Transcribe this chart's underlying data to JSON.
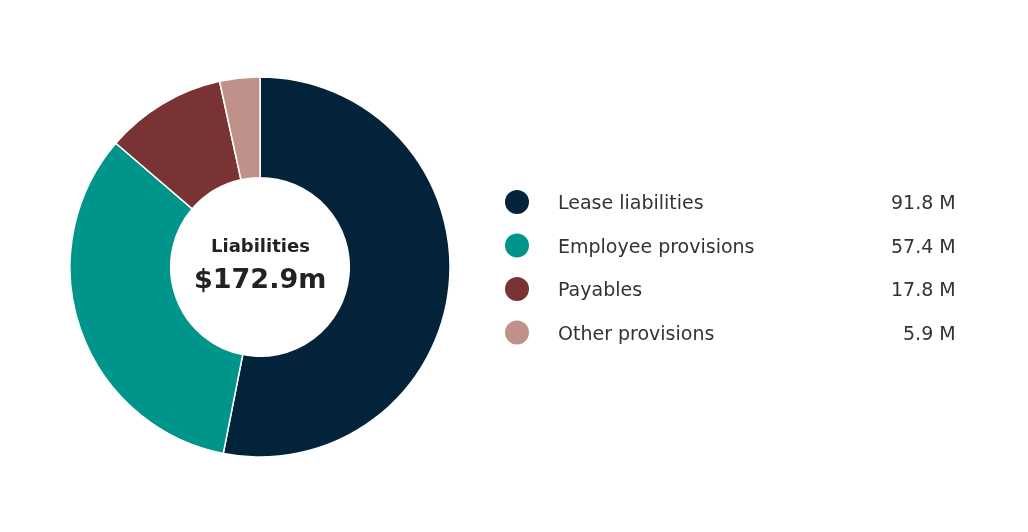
{
  "chart_data": {
    "type": "donut",
    "title": "Liabilities",
    "subtitle": "$172.9m",
    "categories": [
      "Lease liabilities",
      "Employee provisions",
      "Payables",
      "Other provisions"
    ],
    "values": [
      91.8,
      57.4,
      17.8,
      5.9
    ],
    "colors": [
      "#03233b",
      "#00958a",
      "#7a3335",
      "#c0918a"
    ],
    "value_labels": [
      "91.8 M",
      "57.4 M",
      "17.8 M",
      "5.9 M"
    ],
    "legend": "right"
  }
}
